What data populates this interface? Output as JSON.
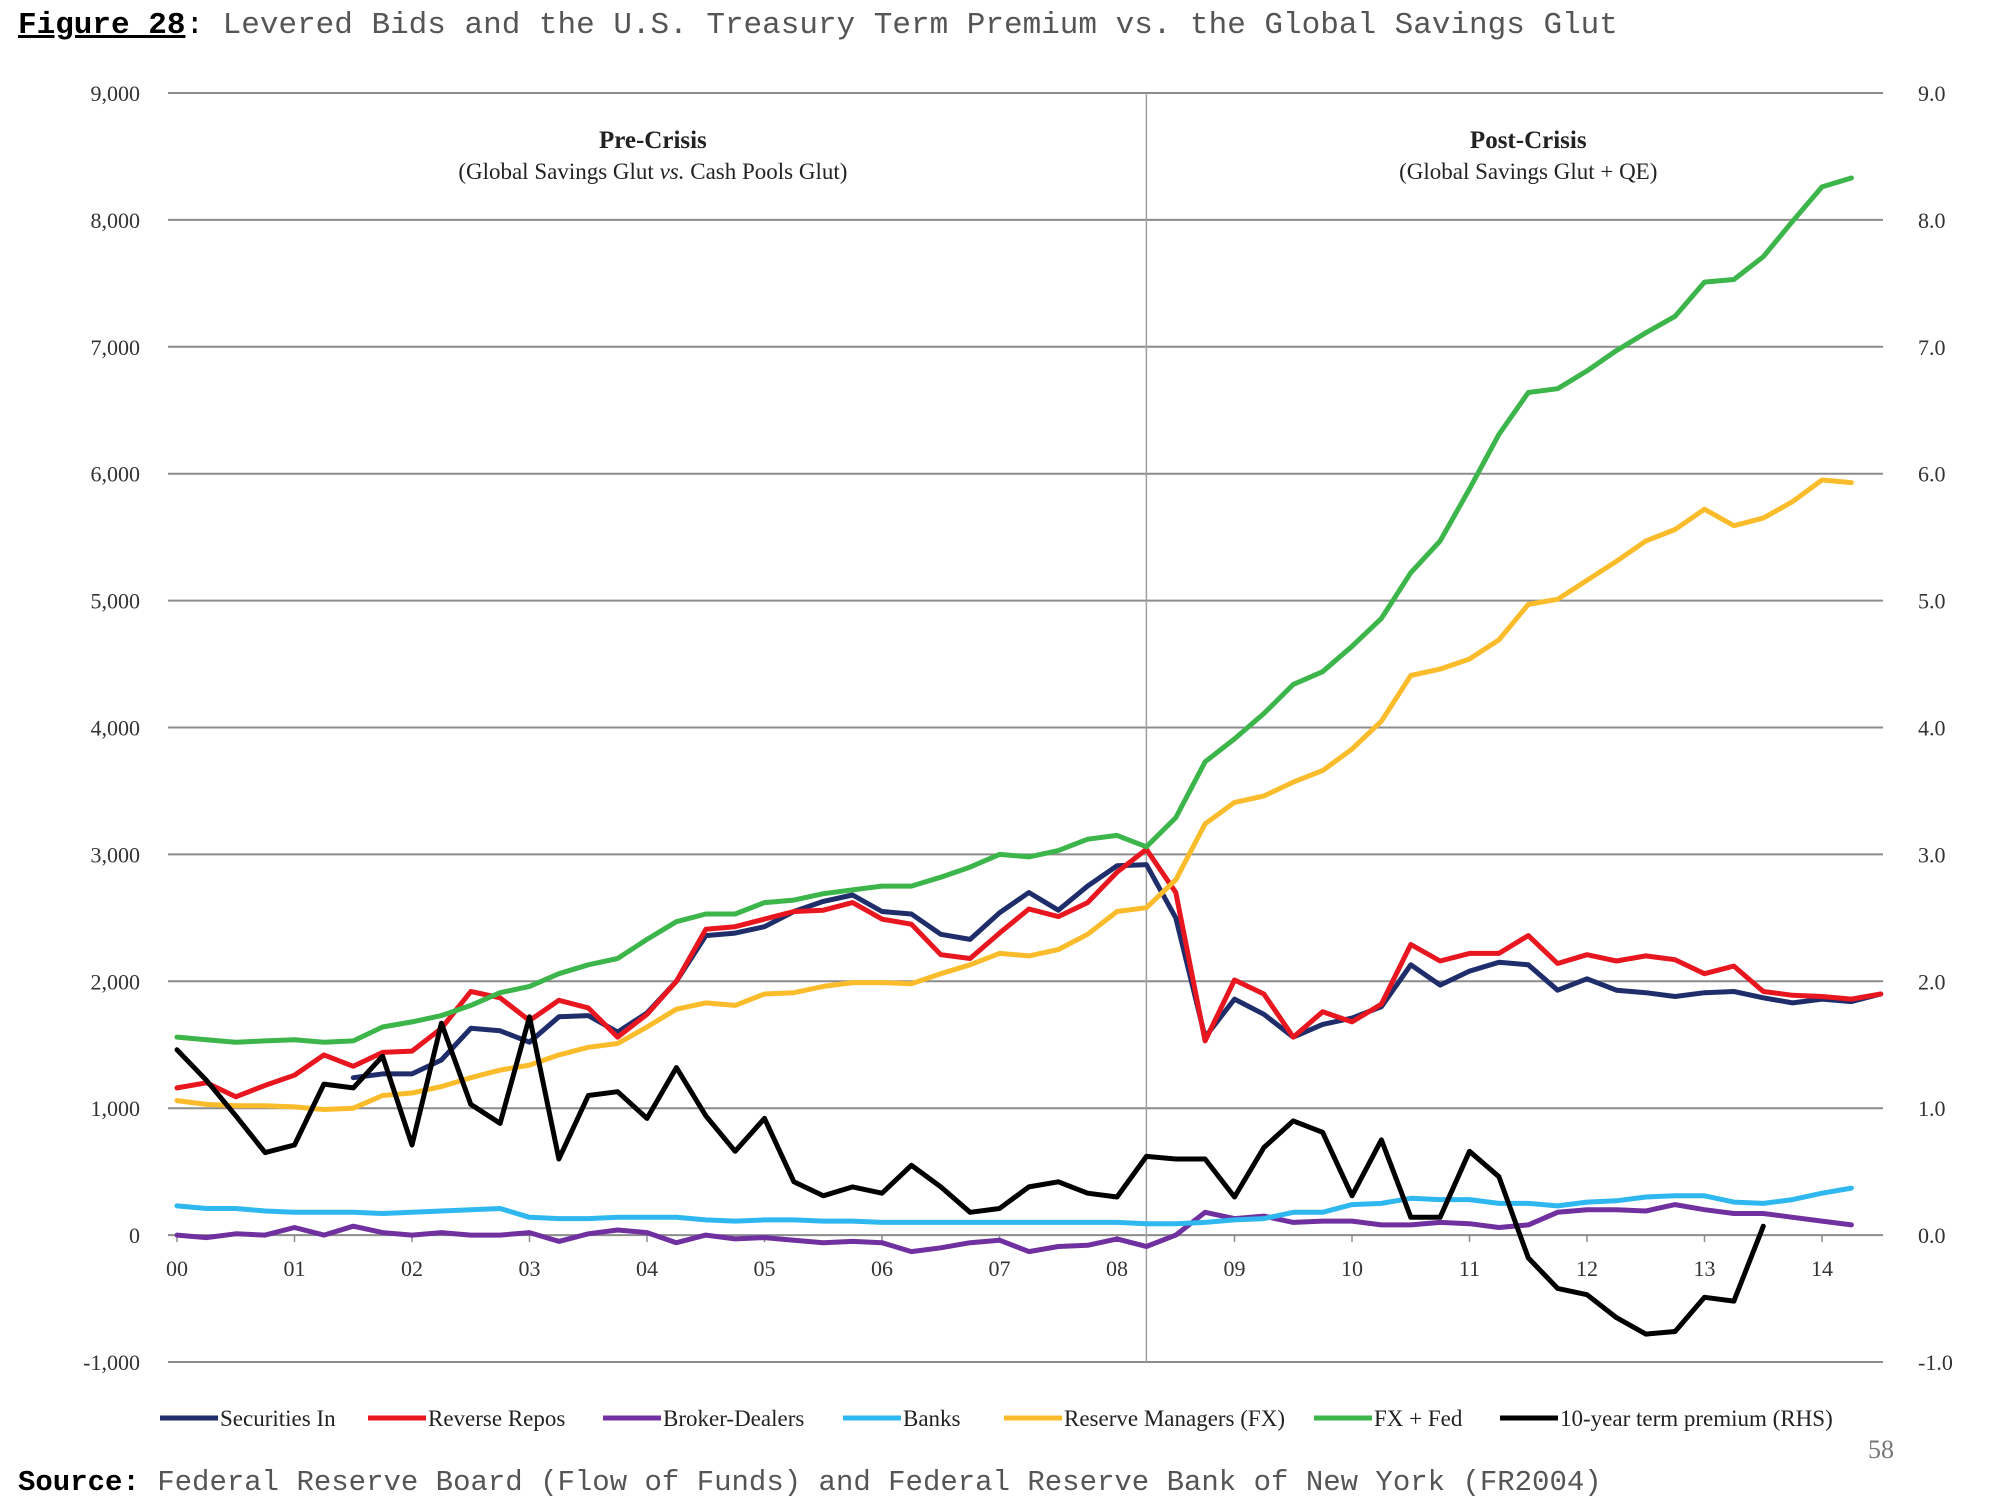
{
  "figure": {
    "label": "Figure 28",
    "title": "Levered Bids and the U.S. Treasury Term Premium vs. the Global Savings Glut"
  },
  "source": {
    "label": "Source:",
    "text": "Federal Reserve Board (Flow of Funds) and Federal Reserve Bank of New York (FR2004)"
  },
  "page_number": "58",
  "chart_data": {
    "type": "line",
    "title": "Levered Bids and the U.S. Treasury Term Premium vs. the Global Savings Glut",
    "xlabel": "",
    "ylabel": "",
    "y_left": {
      "range": [
        -1000,
        9000
      ],
      "ticks": [
        -1000,
        0,
        1000,
        2000,
        3000,
        4000,
        5000,
        6000,
        7000,
        8000,
        9000
      ],
      "tick_labels": [
        "-1,000",
        "0",
        "1,000",
        "2,000",
        "3,000",
        "4,000",
        "5,000",
        "6,000",
        "7,000",
        "8,000",
        "9,000"
      ]
    },
    "y_right": {
      "range": [
        -1.0,
        9.0
      ],
      "ticks": [
        -1,
        0,
        1,
        2,
        3,
        4,
        5,
        6,
        7,
        8,
        9
      ],
      "tick_labels": [
        "-1.0",
        "0.0",
        "1.0",
        "2.0",
        "3.0",
        "4.0",
        "5.0",
        "6.0",
        "7.0",
        "8.0",
        "9.0"
      ]
    },
    "x_range": [
      0,
      14.5
    ],
    "x_ticks": [
      0,
      1,
      2,
      3,
      4,
      5,
      6,
      7,
      8,
      9,
      10,
      11,
      12,
      13,
      14
    ],
    "x_tick_labels": [
      "00",
      "01",
      "02",
      "03",
      "04",
      "05",
      "06",
      "07",
      "08",
      "09",
      "10",
      "11",
      "12",
      "13",
      "14"
    ],
    "grid": true,
    "legend_position": "bottom",
    "divider_x": 8.25,
    "annotations": [
      {
        "title": "Pre-Crisis",
        "subtitle_parts": [
          "(Global Savings Glut ",
          "vs.",
          " Cash Pools Glut)"
        ],
        "x": 4.05
      },
      {
        "title": "Post-Crisis",
        "subtitle_parts": [
          "(Global Savings Glut + QE)",
          "",
          ""
        ],
        "x": 11.5
      }
    ],
    "series": [
      {
        "name": "Securities In",
        "color": "#1f2d6b",
        "axis": "left",
        "x": [
          1.5,
          1.75,
          2.0,
          2.25,
          2.5,
          2.75,
          3.0,
          3.25,
          3.5,
          3.75,
          4.0,
          4.25,
          4.5,
          4.75,
          5.0,
          5.25,
          5.5,
          5.75,
          6.0,
          6.25,
          6.5,
          6.75,
          7.0,
          7.25,
          7.5,
          7.75,
          8.0,
          8.25,
          8.5,
          8.75,
          9.0,
          9.25,
          9.5,
          9.75,
          10.0,
          10.25,
          10.5,
          10.75,
          11.0,
          11.25,
          11.5,
          11.75,
          12.0,
          12.25,
          12.5,
          12.75,
          13.0,
          13.25,
          13.5,
          13.75,
          14.0,
          14.25,
          14.5
        ],
        "y": [
          1240,
          1270,
          1270,
          1380,
          1630,
          1610,
          1520,
          1720,
          1730,
          1600,
          1750,
          2000,
          2360,
          2380,
          2430,
          2550,
          2630,
          2680,
          2550,
          2530,
          2370,
          2330,
          2540,
          2700,
          2560,
          2750,
          2910,
          2920,
          2500,
          1560,
          1860,
          1740,
          1560,
          1660,
          1710,
          1800,
          2130,
          1970,
          2080,
          2150,
          2130,
          1930,
          2020,
          1930,
          1910,
          1880,
          1910,
          1920,
          1870,
          1830,
          1860,
          1840,
          1900
        ]
      },
      {
        "name": "Reverse Repos",
        "color": "#e8161f",
        "axis": "left",
        "x": [
          0.0,
          0.25,
          0.5,
          0.75,
          1.0,
          1.25,
          1.5,
          1.75,
          2.0,
          2.25,
          2.5,
          2.75,
          3.0,
          3.25,
          3.5,
          3.75,
          4.0,
          4.25,
          4.5,
          4.75,
          5.0,
          5.25,
          5.5,
          5.75,
          6.0,
          6.25,
          6.5,
          6.75,
          7.0,
          7.25,
          7.5,
          7.75,
          8.0,
          8.25,
          8.5,
          8.75,
          9.0,
          9.25,
          9.5,
          9.75,
          10.0,
          10.25,
          10.5,
          10.75,
          11.0,
          11.25,
          11.5,
          11.75,
          12.0,
          12.25,
          12.5,
          12.75,
          13.0,
          13.25,
          13.5,
          13.75,
          14.0,
          14.25,
          14.5
        ],
        "y": [
          1160,
          1200,
          1090,
          1180,
          1260,
          1420,
          1330,
          1440,
          1450,
          1630,
          1920,
          1870,
          1690,
          1850,
          1790,
          1560,
          1740,
          2000,
          2410,
          2430,
          2490,
          2550,
          2560,
          2620,
          2490,
          2450,
          2210,
          2180,
          2380,
          2570,
          2510,
          2620,
          2860,
          3040,
          2700,
          1530,
          2010,
          1900,
          1560,
          1760,
          1680,
          1820,
          2290,
          2160,
          2220,
          2220,
          2360,
          2140,
          2210,
          2160,
          2200,
          2170,
          2060,
          2120,
          1920,
          1890,
          1880,
          1860,
          1900
        ]
      },
      {
        "name": "Broker-Dealers",
        "color": "#7030a0",
        "axis": "left",
        "x": [
          0.0,
          0.25,
          0.5,
          0.75,
          1.0,
          1.25,
          1.5,
          1.75,
          2.0,
          2.25,
          2.5,
          2.75,
          3.0,
          3.25,
          3.5,
          3.75,
          4.0,
          4.25,
          4.5,
          4.75,
          5.0,
          5.25,
          5.5,
          5.75,
          6.0,
          6.25,
          6.5,
          6.75,
          7.0,
          7.25,
          7.5,
          7.75,
          8.0,
          8.25,
          8.5,
          8.75,
          9.0,
          9.25,
          9.5,
          9.75,
          10.0,
          10.25,
          10.5,
          10.75,
          11.0,
          11.25,
          11.5,
          11.75,
          12.0,
          12.25,
          12.5,
          12.75,
          13.0,
          13.25,
          13.5,
          13.75,
          14.0,
          14.25
        ],
        "y": [
          0,
          -20,
          10,
          0,
          60,
          0,
          70,
          20,
          0,
          20,
          0,
          0,
          20,
          -50,
          10,
          40,
          20,
          -60,
          0,
          -30,
          -20,
          -40,
          -60,
          -50,
          -60,
          -130,
          -100,
          -60,
          -40,
          -130,
          -90,
          -80,
          -30,
          -90,
          0,
          180,
          130,
          150,
          100,
          110,
          110,
          80,
          80,
          100,
          90,
          60,
          80,
          180,
          200,
          200,
          190,
          240,
          200,
          170,
          170,
          140,
          110,
          80
        ]
      },
      {
        "name": "Banks",
        "color": "#2fb7ef",
        "axis": "left",
        "x": [
          0.0,
          0.25,
          0.5,
          0.75,
          1.0,
          1.25,
          1.5,
          1.75,
          2.0,
          2.25,
          2.5,
          2.75,
          3.0,
          3.25,
          3.5,
          3.75,
          4.0,
          4.25,
          4.5,
          4.75,
          5.0,
          5.25,
          5.5,
          5.75,
          6.0,
          6.25,
          6.5,
          6.75,
          7.0,
          7.25,
          7.5,
          7.75,
          8.0,
          8.25,
          8.5,
          8.75,
          9.0,
          9.25,
          9.5,
          9.75,
          10.0,
          10.25,
          10.5,
          10.75,
          11.0,
          11.25,
          11.5,
          11.75,
          12.0,
          12.25,
          12.5,
          12.75,
          13.0,
          13.25,
          13.5,
          13.75,
          14.0,
          14.25
        ],
        "y": [
          230,
          210,
          210,
          190,
          180,
          180,
          180,
          170,
          180,
          190,
          200,
          210,
          140,
          130,
          130,
          140,
          140,
          140,
          120,
          110,
          120,
          120,
          110,
          110,
          100,
          100,
          100,
          100,
          100,
          100,
          100,
          100,
          100,
          90,
          90,
          100,
          120,
          130,
          180,
          180,
          240,
          250,
          290,
          280,
          280,
          250,
          250,
          230,
          260,
          270,
          300,
          310,
          310,
          260,
          250,
          280,
          330,
          370
        ]
      },
      {
        "name": "Reserve Managers (FX)",
        "color": "#fbbc2b",
        "axis": "left",
        "x": [
          0.0,
          0.25,
          0.5,
          0.75,
          1.0,
          1.25,
          1.5,
          1.75,
          2.0,
          2.25,
          2.5,
          2.75,
          3.0,
          3.25,
          3.5,
          3.75,
          4.0,
          4.25,
          4.5,
          4.75,
          5.0,
          5.25,
          5.5,
          5.75,
          6.0,
          6.25,
          6.5,
          6.75,
          7.0,
          7.25,
          7.5,
          7.75,
          8.0,
          8.25,
          8.5,
          8.75,
          9.0,
          9.25,
          9.5,
          9.75,
          10.0,
          10.25,
          10.5,
          10.75,
          11.0,
          11.25,
          11.5,
          11.75,
          12.0,
          12.25,
          12.5,
          12.75,
          13.0,
          13.25,
          13.5,
          13.75,
          14.0,
          14.25
        ],
        "y": [
          1060,
          1030,
          1020,
          1020,
          1010,
          990,
          1000,
          1100,
          1120,
          1170,
          1240,
          1300,
          1340,
          1420,
          1480,
          1510,
          1640,
          1780,
          1830,
          1810,
          1900,
          1910,
          1960,
          1990,
          1990,
          1980,
          2060,
          2130,
          2220,
          2200,
          2250,
          2370,
          2550,
          2580,
          2800,
          3240,
          3410,
          3460,
          3570,
          3660,
          3830,
          4050,
          4410,
          4460,
          4540,
          4690,
          4970,
          5010,
          5160,
          5310,
          5470,
          5560,
          5720,
          5590,
          5650,
          5780,
          5950,
          5930
        ]
      },
      {
        "name": "FX + Fed",
        "color": "#3cb54a",
        "axis": "left",
        "x": [
          0.0,
          0.25,
          0.5,
          0.75,
          1.0,
          1.25,
          1.5,
          1.75,
          2.0,
          2.25,
          2.5,
          2.75,
          3.0,
          3.25,
          3.5,
          3.75,
          4.0,
          4.25,
          4.5,
          4.75,
          5.0,
          5.25,
          5.5,
          5.75,
          6.0,
          6.25,
          6.5,
          6.75,
          7.0,
          7.25,
          7.5,
          7.75,
          8.0,
          8.25,
          8.5,
          8.75,
          9.0,
          9.25,
          9.5,
          9.75,
          10.0,
          10.25,
          10.5,
          10.75,
          11.0,
          11.25,
          11.5,
          11.75,
          12.0,
          12.25,
          12.5,
          12.75,
          13.0,
          13.25,
          13.5,
          13.75,
          14.0,
          14.25
        ],
        "y": [
          1560,
          1540,
          1520,
          1530,
          1540,
          1520,
          1530,
          1640,
          1680,
          1730,
          1810,
          1910,
          1960,
          2060,
          2130,
          2180,
          2330,
          2470,
          2530,
          2530,
          2620,
          2640,
          2690,
          2720,
          2750,
          2750,
          2820,
          2900,
          3000,
          2980,
          3030,
          3120,
          3150,
          3060,
          3290,
          3730,
          3910,
          4110,
          4340,
          4440,
          4640,
          4860,
          5220,
          5470,
          5880,
          6310,
          6640,
          6670,
          6810,
          6970,
          7110,
          7240,
          7510,
          7530,
          7710,
          7990,
          8260,
          8330
        ]
      },
      {
        "name": "10-year term premium (RHS)",
        "color": "#000000",
        "axis": "right",
        "x": [
          0.0,
          0.25,
          0.5,
          0.75,
          1.0,
          1.25,
          1.5,
          1.75,
          2.0,
          2.25,
          2.5,
          2.75,
          3.0,
          3.25,
          3.5,
          3.75,
          4.0,
          4.25,
          4.5,
          4.75,
          5.0,
          5.25,
          5.5,
          5.75,
          6.0,
          6.25,
          6.5,
          6.75,
          7.0,
          7.25,
          7.5,
          7.75,
          8.0,
          8.25,
          8.5,
          8.75,
          9.0,
          9.25,
          9.5,
          9.75,
          10.0,
          10.25,
          10.5,
          10.75,
          11.0,
          11.25,
          11.5,
          11.75,
          12.0,
          12.25,
          12.5,
          12.75,
          13.0,
          13.25,
          13.5
        ],
        "y": [
          1.46,
          1.22,
          0.94,
          0.65,
          0.71,
          1.19,
          1.16,
          1.41,
          0.71,
          1.67,
          1.03,
          0.88,
          1.72,
          0.6,
          1.1,
          1.13,
          0.92,
          1.32,
          0.94,
          0.66,
          0.92,
          0.42,
          0.31,
          0.38,
          0.33,
          0.55,
          0.38,
          0.18,
          0.21,
          0.38,
          0.42,
          0.33,
          0.3,
          0.62,
          0.6,
          0.6,
          0.3,
          0.69,
          0.9,
          0.81,
          0.31,
          0.75,
          0.14,
          0.14,
          0.66,
          0.46,
          -0.18,
          -0.42,
          -0.47,
          -0.65,
          -0.78,
          -0.76,
          -0.49,
          -0.52,
          0.07
        ]
      }
    ]
  }
}
